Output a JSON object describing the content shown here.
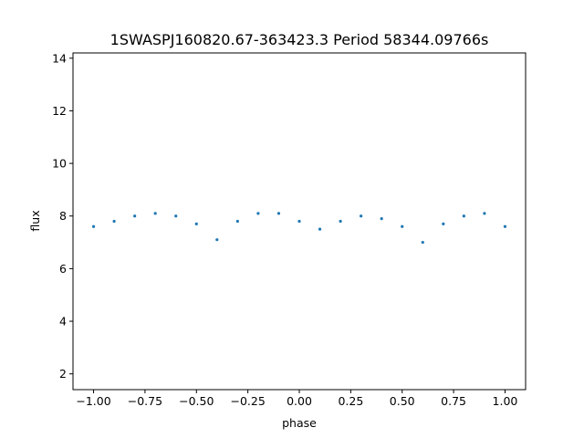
{
  "chart_data": {
    "type": "scatter",
    "title": "1SWASPJ160820.67-363423.3 Period 58344.09766s",
    "xlabel": "phase",
    "ylabel": "flux",
    "xlim": [
      -1.1,
      1.1
    ],
    "ylim": [
      1.4,
      14.2
    ],
    "xticks": [
      -1.0,
      -0.75,
      -0.5,
      -0.25,
      0.0,
      0.25,
      0.5,
      0.75,
      1.0
    ],
    "xtick_labels": [
      "−1.00",
      "−0.75",
      "−0.50",
      "−0.25",
      "0.00",
      "0.25",
      "0.50",
      "0.75",
      "1.00"
    ],
    "yticks": [
      2,
      4,
      6,
      8,
      10,
      12,
      14
    ],
    "ytick_labels": [
      "2",
      "4",
      "6",
      "8",
      "10",
      "12",
      "14"
    ],
    "grid": false,
    "legend": "none",
    "series": [
      {
        "marker_color": "#1f77b4",
        "x": [
          -1.0,
          -0.9,
          -0.8,
          -0.7,
          -0.6,
          -0.5,
          -0.4,
          -0.3,
          -0.2,
          -0.1,
          0.0,
          0.1,
          0.2,
          0.3,
          0.4,
          0.5,
          0.6,
          0.7,
          0.8,
          0.9,
          1.0
        ],
        "y": [
          7.6,
          7.8,
          8.0,
          8.1,
          8.0,
          7.7,
          7.1,
          7.8,
          8.1,
          8.1,
          7.8,
          7.5,
          7.8,
          8.0,
          7.9,
          7.6,
          7.0,
          7.7,
          8.0,
          8.1,
          7.6
        ]
      }
    ]
  }
}
